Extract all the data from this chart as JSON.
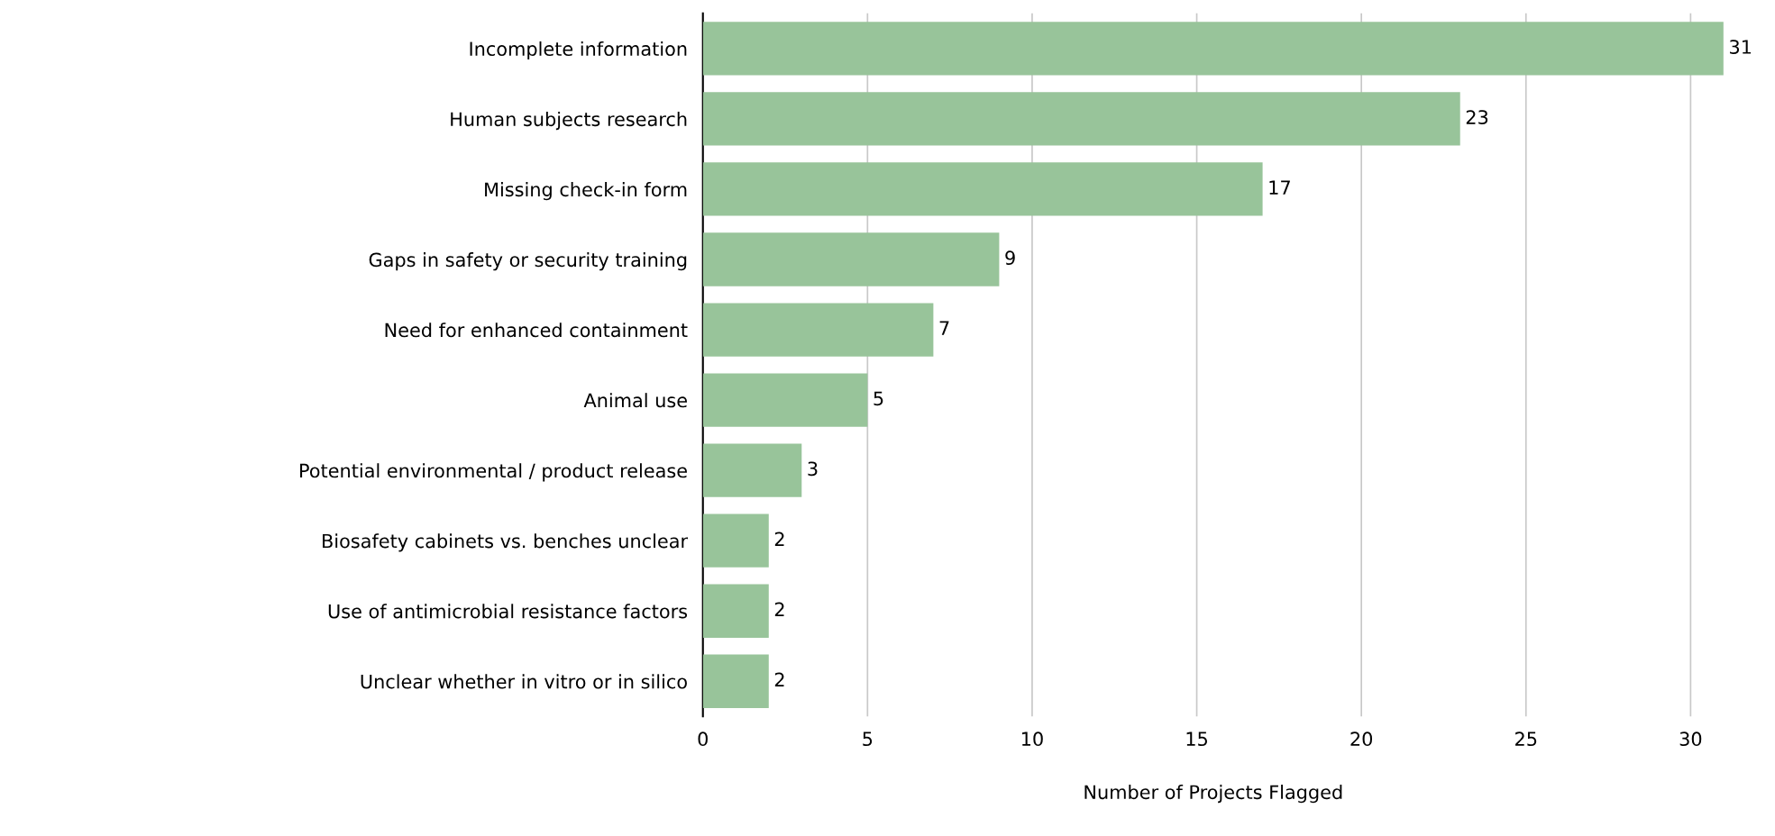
{
  "chart_data": {
    "type": "bar",
    "orientation": "horizontal",
    "xlabel": "Number of Projects Flagged",
    "categories": [
      "Incomplete information",
      "Human subjects research",
      "Missing check-in form",
      "Gaps in safety or security training",
      "Need for enhanced containment",
      "Animal use",
      "Potential environmental / product release",
      "Biosafety cabinets vs. benches unclear",
      "Use of antimicrobial resistance factors",
      "Unclear whether in vitro or in silico"
    ],
    "values": [
      31,
      23,
      17,
      9,
      7,
      5,
      3,
      2,
      2,
      2
    ],
    "color": "#98c49a",
    "xlim": [
      0,
      31
    ],
    "xticks": [
      0,
      5,
      10,
      15,
      20,
      25,
      30
    ],
    "grid": "x",
    "data_labels": true
  }
}
